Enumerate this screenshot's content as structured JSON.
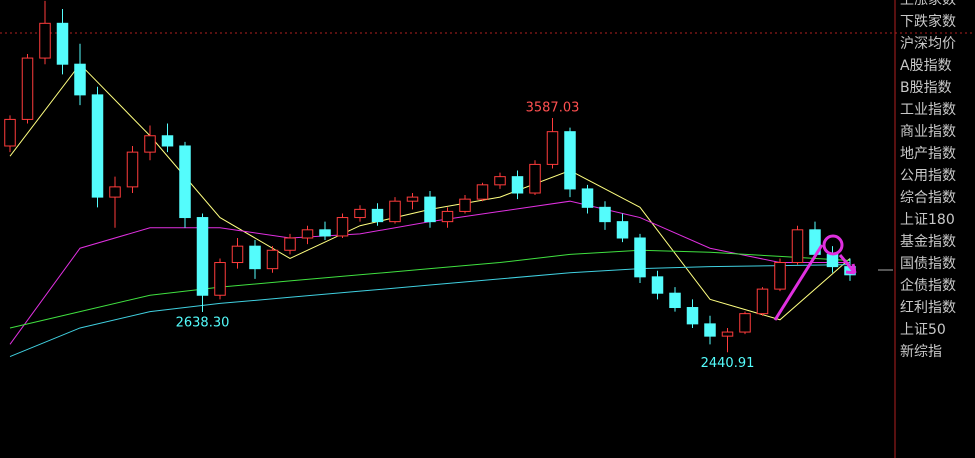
{
  "chart_data": {
    "type": "candlestick",
    "ylim": [
      1924,
      4164
    ],
    "up_color": "#ff3c3c",
    "down_color": "#54fcfc",
    "candles": [
      {
        "open": 3450,
        "high": 3600,
        "low": 3420,
        "close": 3580
      },
      {
        "open": 3580,
        "high": 3900,
        "low": 3560,
        "close": 3880
      },
      {
        "open": 3880,
        "high": 4160,
        "low": 3850,
        "close": 4050
      },
      {
        "open": 4050,
        "high": 4120,
        "low": 3800,
        "close": 3850
      },
      {
        "open": 3850,
        "high": 3950,
        "low": 3650,
        "close": 3700
      },
      {
        "open": 3700,
        "high": 3740,
        "low": 3150,
        "close": 3200
      },
      {
        "open": 3200,
        "high": 3300,
        "low": 3050,
        "close": 3250
      },
      {
        "open": 3250,
        "high": 3450,
        "low": 3220,
        "close": 3420
      },
      {
        "open": 3420,
        "high": 3550,
        "low": 3380,
        "close": 3500
      },
      {
        "open": 3500,
        "high": 3560,
        "low": 3420,
        "close": 3450
      },
      {
        "open": 3450,
        "high": 3470,
        "low": 3050,
        "close": 3100
      },
      {
        "open": 3100,
        "high": 3120,
        "low": 2638.3,
        "close": 2720,
        "low_label": "2638.30"
      },
      {
        "open": 2720,
        "high": 2900,
        "low": 2700,
        "close": 2880
      },
      {
        "open": 2880,
        "high": 3000,
        "low": 2850,
        "close": 2960
      },
      {
        "open": 2960,
        "high": 2990,
        "low": 2800,
        "close": 2850
      },
      {
        "open": 2850,
        "high": 2960,
        "low": 2830,
        "close": 2940
      },
      {
        "open": 2940,
        "high": 3020,
        "low": 2920,
        "close": 3000
      },
      {
        "open": 3000,
        "high": 3060,
        "low": 2970,
        "close": 3040
      },
      {
        "open": 3040,
        "high": 3080,
        "low": 2990,
        "close": 3010
      },
      {
        "open": 3010,
        "high": 3120,
        "low": 3000,
        "close": 3100
      },
      {
        "open": 3100,
        "high": 3160,
        "low": 3080,
        "close": 3140
      },
      {
        "open": 3140,
        "high": 3170,
        "low": 3060,
        "close": 3080
      },
      {
        "open": 3080,
        "high": 3200,
        "low": 3070,
        "close": 3180
      },
      {
        "open": 3180,
        "high": 3220,
        "low": 3140,
        "close": 3200
      },
      {
        "open": 3200,
        "high": 3230,
        "low": 3050,
        "close": 3080
      },
      {
        "open": 3080,
        "high": 3150,
        "low": 3050,
        "close": 3130
      },
      {
        "open": 3130,
        "high": 3210,
        "low": 3120,
        "close": 3190
      },
      {
        "open": 3190,
        "high": 3270,
        "low": 3180,
        "close": 3260
      },
      {
        "open": 3260,
        "high": 3320,
        "low": 3240,
        "close": 3300
      },
      {
        "open": 3300,
        "high": 3330,
        "low": 3190,
        "close": 3220
      },
      {
        "open": 3220,
        "high": 3380,
        "low": 3210,
        "close": 3360
      },
      {
        "open": 3360,
        "high": 3587.03,
        "low": 3340,
        "close": 3520,
        "high_label": "3587.03"
      },
      {
        "open": 3520,
        "high": 3540,
        "low": 3200,
        "close": 3240
      },
      {
        "open": 3240,
        "high": 3260,
        "low": 3120,
        "close": 3150
      },
      {
        "open": 3150,
        "high": 3180,
        "low": 3040,
        "close": 3080
      },
      {
        "open": 3080,
        "high": 3120,
        "low": 2980,
        "close": 3000
      },
      {
        "open": 3000,
        "high": 3020,
        "low": 2780,
        "close": 2810
      },
      {
        "open": 2810,
        "high": 2840,
        "low": 2700,
        "close": 2730
      },
      {
        "open": 2730,
        "high": 2760,
        "low": 2640,
        "close": 2660
      },
      {
        "open": 2660,
        "high": 2700,
        "low": 2560,
        "close": 2580
      },
      {
        "open": 2580,
        "high": 2620,
        "low": 2480,
        "close": 2520
      },
      {
        "open": 2520,
        "high": 2560,
        "low": 2440.91,
        "close": 2540,
        "low_label": "2440.91"
      },
      {
        "open": 2540,
        "high": 2640,
        "low": 2530,
        "close": 2630
      },
      {
        "open": 2630,
        "high": 2760,
        "low": 2620,
        "close": 2750
      },
      {
        "open": 2750,
        "high": 2900,
        "low": 2740,
        "close": 2880
      },
      {
        "open": 2880,
        "high": 3060,
        "low": 2870,
        "close": 3040
      },
      {
        "open": 3040,
        "high": 3080,
        "low": 2900,
        "close": 2920
      },
      {
        "open": 2920,
        "high": 2960,
        "low": 2830,
        "close": 2860
      },
      {
        "open": 2860,
        "high": 2900,
        "low": 2790,
        "close": 2820
      }
    ],
    "lines": [
      {
        "color": "#ffff80",
        "x": [
          0,
          4,
          8,
          12,
          16,
          20,
          24,
          28,
          32,
          36,
          40,
          44,
          48
        ],
        "values": [
          3400,
          3850,
          3500,
          3100,
          2900,
          3060,
          3140,
          3200,
          3330,
          3150,
          2700,
          2600,
          2900
        ]
      },
      {
        "color": "#e030e0",
        "x": [
          0,
          4,
          8,
          12,
          16,
          20,
          24,
          28,
          32,
          36,
          40,
          44,
          48
        ],
        "values": [
          2480,
          2950,
          3050,
          3050,
          3000,
          3020,
          3080,
          3130,
          3180,
          3100,
          2950,
          2880,
          2880
        ]
      },
      {
        "color": "#40e040",
        "x": [
          0,
          4,
          8,
          12,
          16,
          20,
          24,
          28,
          32,
          36,
          40,
          44,
          48
        ],
        "values": [
          2560,
          2640,
          2720,
          2760,
          2790,
          2820,
          2850,
          2880,
          2920,
          2940,
          2930,
          2910,
          2890
        ]
      },
      {
        "color": "#40d0e0",
        "x": [
          0,
          4,
          8,
          12,
          16,
          20,
          24,
          28,
          32,
          36,
          40,
          44,
          48
        ],
        "values": [
          2420,
          2560,
          2640,
          2680,
          2710,
          2740,
          2770,
          2800,
          2830,
          2850,
          2860,
          2865,
          2870
        ]
      }
    ]
  },
  "menu": [
    "上涨家数",
    "下跌家数",
    "沪深均价",
    "A股指数",
    "B股指数",
    "工业指数",
    "商业指数",
    "地产指数",
    "公用指数",
    "综合指数",
    "上证180",
    "基金指数",
    "国债指数",
    "企债指数",
    "红利指数",
    "上证50",
    "新综指"
  ]
}
